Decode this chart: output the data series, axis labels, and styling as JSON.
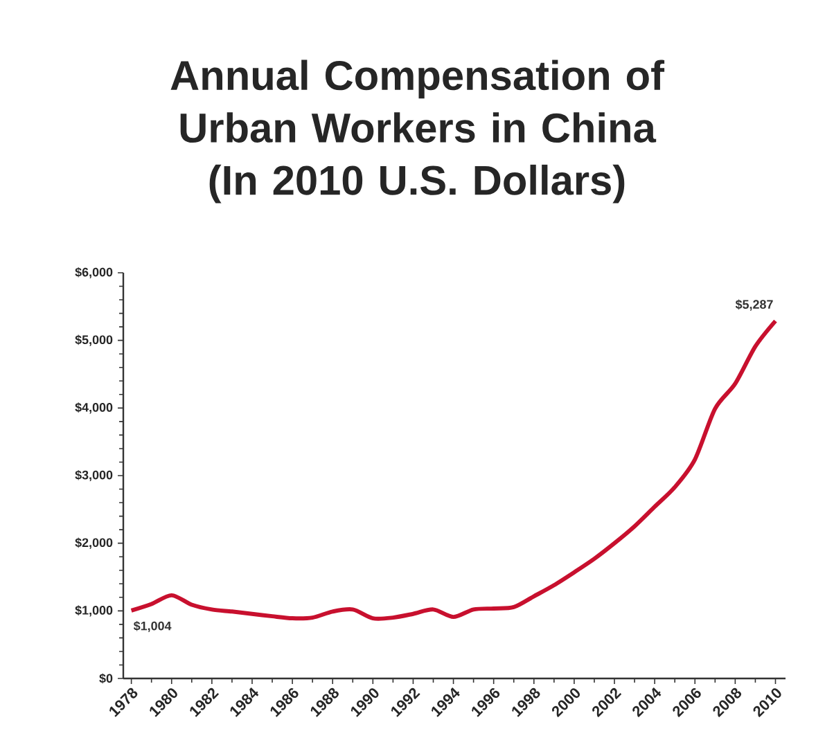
{
  "chart_data": {
    "type": "line",
    "title": "Annual Compensation of Urban Workers in China (In 2010 U.S. Dollars)",
    "x": [
      1978,
      1979,
      1980,
      1981,
      1982,
      1983,
      1984,
      1985,
      1986,
      1987,
      1988,
      1989,
      1990,
      1991,
      1992,
      1993,
      1994,
      1995,
      1996,
      1997,
      1998,
      1999,
      2000,
      2001,
      2002,
      2003,
      2004,
      2005,
      2006,
      2007,
      2008,
      2009,
      2010
    ],
    "series": [
      {
        "color": "#c8102e",
        "values": [
          1004,
          1100,
          1230,
          1090,
          1020,
          990,
          955,
          920,
          890,
          900,
          990,
          1020,
          890,
          900,
          955,
          1020,
          910,
          1020,
          1035,
          1055,
          1215,
          1380,
          1570,
          1770,
          2000,
          2250,
          2540,
          2830,
          3240,
          3990,
          4360,
          4910,
          5287
        ]
      }
    ],
    "xlim": [
      1977.6,
      2010.5
    ],
    "ylim": [
      0,
      6000
    ],
    "xticks": [
      1978,
      1980,
      1982,
      1984,
      1986,
      1988,
      1990,
      1992,
      1994,
      1996,
      1998,
      2000,
      2002,
      2004,
      2006,
      2008,
      2010
    ],
    "yticks": [
      {
        "value": 0,
        "label": "$0"
      },
      {
        "value": 1000,
        "label": "$1,000"
      },
      {
        "value": 2000,
        "label": "$2,000"
      },
      {
        "value": 3000,
        "label": "$3,000"
      },
      {
        "value": 4000,
        "label": "$4,000"
      },
      {
        "value": 5000,
        "label": "$5,000"
      },
      {
        "value": 6000,
        "label": "$6,000"
      }
    ],
    "annotations": [
      {
        "text": "$1,004",
        "x": 1978,
        "y": 1004
      },
      {
        "text": "$5,287",
        "x": 2010,
        "y": 5287
      }
    ],
    "marker": "none",
    "line_style": "solid"
  }
}
